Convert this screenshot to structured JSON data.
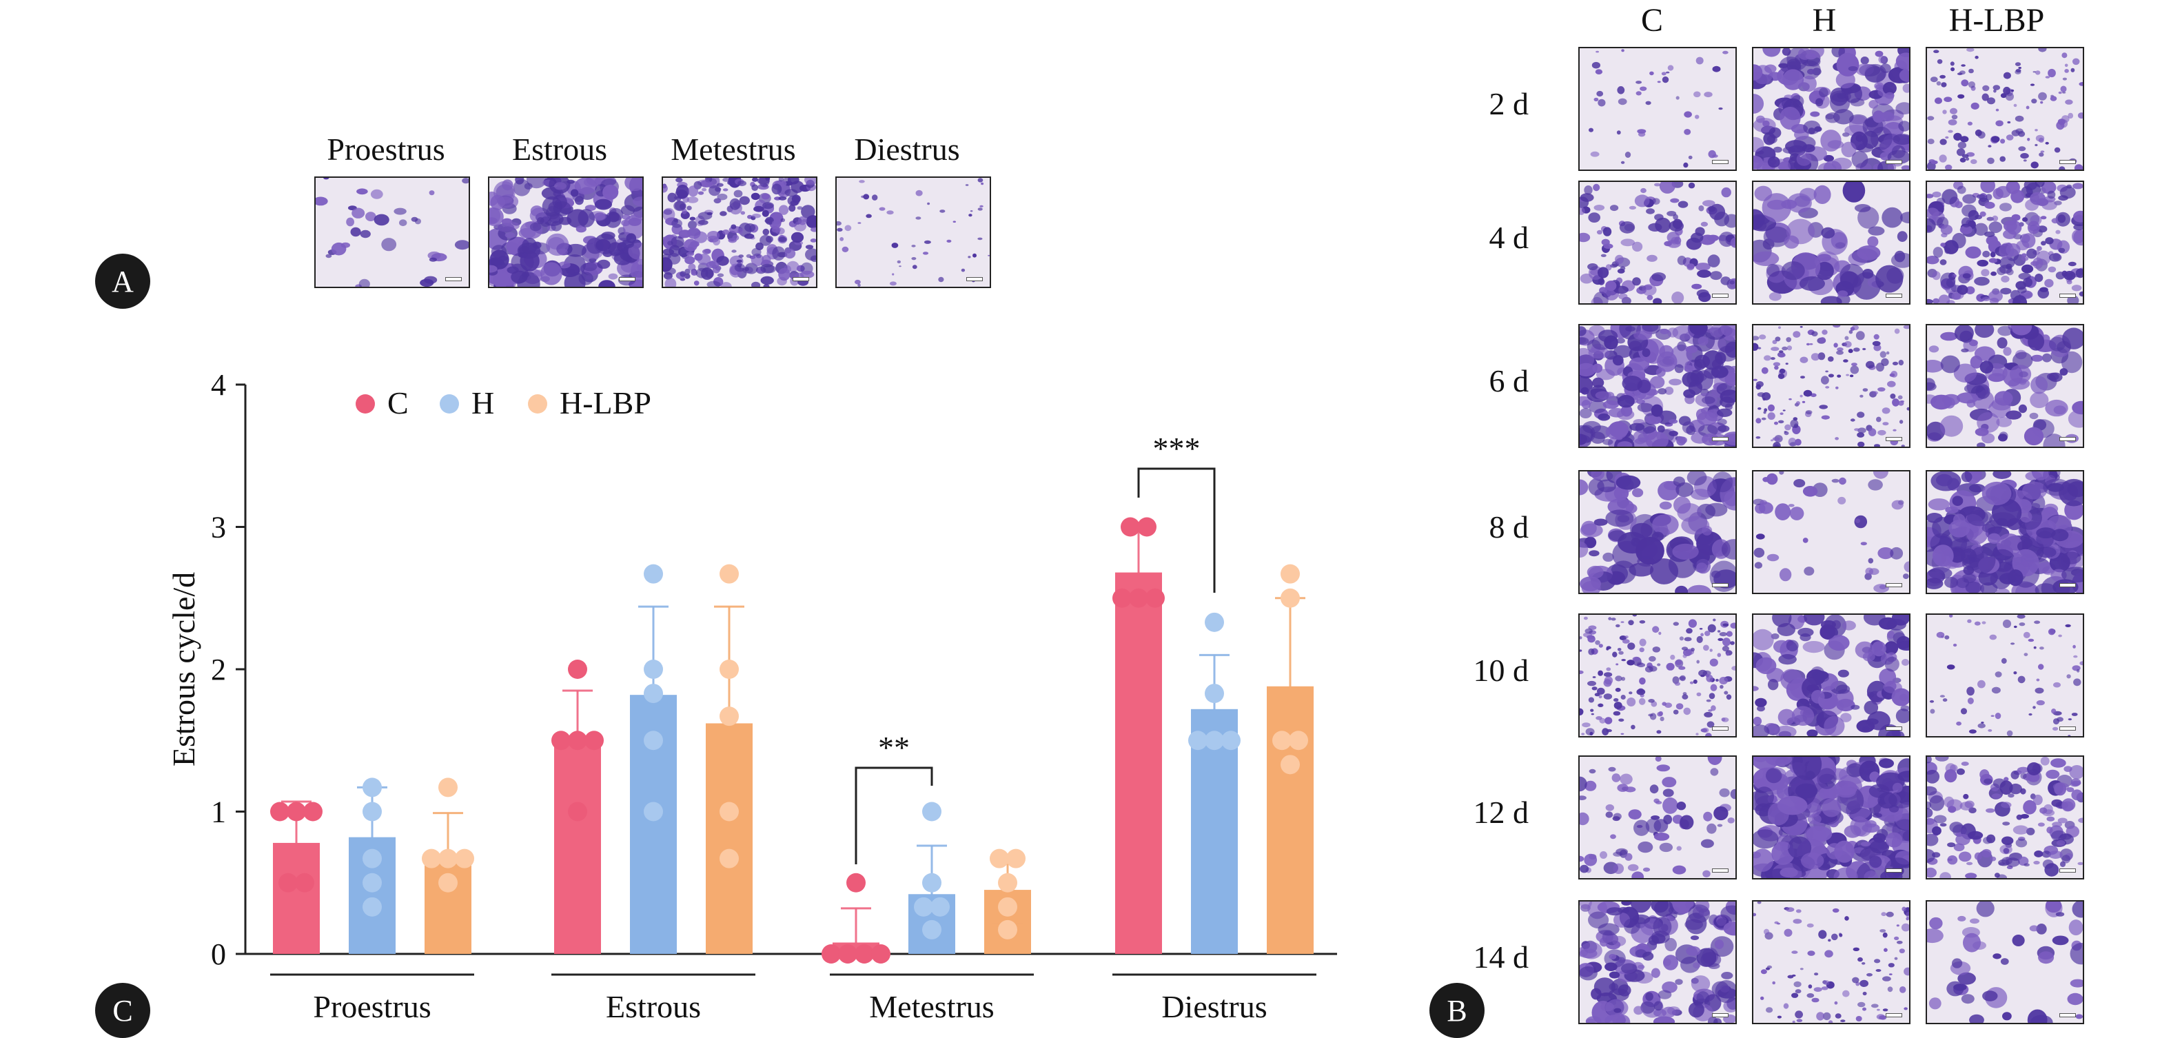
{
  "panels": {
    "a_label": "A",
    "b_label": "B",
    "c_label": "C"
  },
  "panel_a": {
    "stages": [
      {
        "title": "Proestrus"
      },
      {
        "title": "Estrous"
      },
      {
        "title": "Metestrus"
      },
      {
        "title": "Diestrus"
      }
    ]
  },
  "panel_b": {
    "columns": [
      "C",
      "H",
      "H-LBP"
    ],
    "rows": [
      "2 d",
      "4 d",
      "6 d",
      "8 d",
      "10 d",
      "12 d",
      "14 d"
    ]
  },
  "colors": {
    "C": "#ef6480",
    "H": "#8ab3e6",
    "H-LBP": "#f5ab70",
    "C_dot": "#ec5b79",
    "H_dot": "#a8c8ee",
    "H-LBP_dot": "#fcc9a2",
    "stain_dark": "#4e34a0",
    "stain_mid": "#7b5cc0",
    "stain_bg": "#ece7f1"
  },
  "chart_data": {
    "type": "bar",
    "ylabel": "Estrous cycle/d",
    "ylim": [
      0,
      4
    ],
    "yticks": [
      "0",
      "1",
      "2",
      "3",
      "4"
    ],
    "categories": [
      "Proestrus",
      "Estrous",
      "Metestrus",
      "Diestrus"
    ],
    "series": [
      {
        "name": "C",
        "values": [
          0.78,
          1.5,
          0.08,
          2.68
        ],
        "sd": [
          0.29,
          0.35,
          0.24,
          0.32
        ],
        "points": [
          [
            1,
            1,
            1,
            0.5,
            0.5
          ],
          [
            2,
            1.5,
            1.5,
            1.5,
            1
          ],
          [
            0.5,
            0,
            0,
            0,
            0
          ],
          [
            3,
            3,
            2.5,
            2.5,
            2.5
          ]
        ]
      },
      {
        "name": "H",
        "values": [
          0.82,
          1.82,
          0.42,
          1.72
        ],
        "sd": [
          0.35,
          0.62,
          0.34,
          0.38
        ],
        "points": [
          [
            1.17,
            1,
            0.67,
            0.5,
            0.33
          ],
          [
            2.67,
            2,
            1.83,
            1.5,
            1
          ],
          [
            1,
            0.5,
            0.33,
            0.33,
            0.17
          ],
          [
            2.33,
            1.83,
            1.5,
            1.5,
            1.5
          ]
        ]
      },
      {
        "name": "H-LBP",
        "values": [
          0.67,
          1.62,
          0.45,
          1.88
        ],
        "sd": [
          0.32,
          0.82,
          0.24,
          0.62
        ],
        "points": [
          [
            1.17,
            0.67,
            0.67,
            0.67,
            0.5
          ],
          [
            2.67,
            2,
            1.67,
            1,
            0.67
          ],
          [
            0.67,
            0.67,
            0.5,
            0.33,
            0.17
          ],
          [
            2.67,
            2.5,
            1.5,
            1.5,
            1.33
          ]
        ]
      }
    ],
    "significance": [
      {
        "category": "Metestrus",
        "between": [
          "C",
          "H"
        ],
        "label": "**"
      },
      {
        "category": "Diestrus",
        "between": [
          "C",
          "H"
        ],
        "label": "***"
      }
    ],
    "legend": "top-left"
  }
}
